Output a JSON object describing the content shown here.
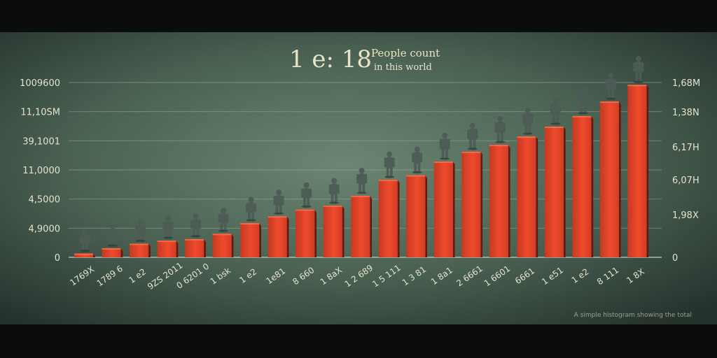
{
  "chart_data": {
    "type": "bar",
    "title_number": "1 e: 18",
    "title_text_line1": "People count",
    "title_text_line2": "in this world",
    "xlabel": "",
    "ylabel": "",
    "left_ticks": [
      "1009600",
      "11,10SM",
      "39,1001",
      "11,0000",
      "4,5000",
      "4,9000",
      "0"
    ],
    "right_ticks": [
      "1,68M",
      "1,38N",
      "6,17H",
      "6,07H",
      "1,98X",
      "0"
    ],
    "categories": [
      "1769X",
      "1789 6",
      "1 e2",
      "9ZS 2011",
      "0 6201 0",
      "1 bsk",
      "1 e2",
      "1e81",
      "8 660",
      "1 8aX",
      "1 2 689",
      "1 5 111",
      "1 3 81",
      "1 8a1",
      "2 6661",
      "1 6601",
      "6661",
      "1 e51",
      "1 e2",
      "8 111",
      "1 8X"
    ],
    "values": [
      0.05,
      0.12,
      0.18,
      0.22,
      0.24,
      0.31,
      0.45,
      0.54,
      0.63,
      0.68,
      0.81,
      1.02,
      1.08,
      1.26,
      1.39,
      1.48,
      1.59,
      1.72,
      1.86,
      2.05,
      2.27
    ],
    "ylim": [
      0,
      2.3
    ],
    "grid": true,
    "footnote": "A simple histogram showing the total"
  },
  "colors": {
    "background_center": "#607a68",
    "background_edge": "#2b3a33",
    "bar_face": "#e3452a",
    "bar_side": "#8a2216",
    "grid": "#9fb3a3",
    "text": "#e6e2cc",
    "figure": "#4d5c55"
  }
}
